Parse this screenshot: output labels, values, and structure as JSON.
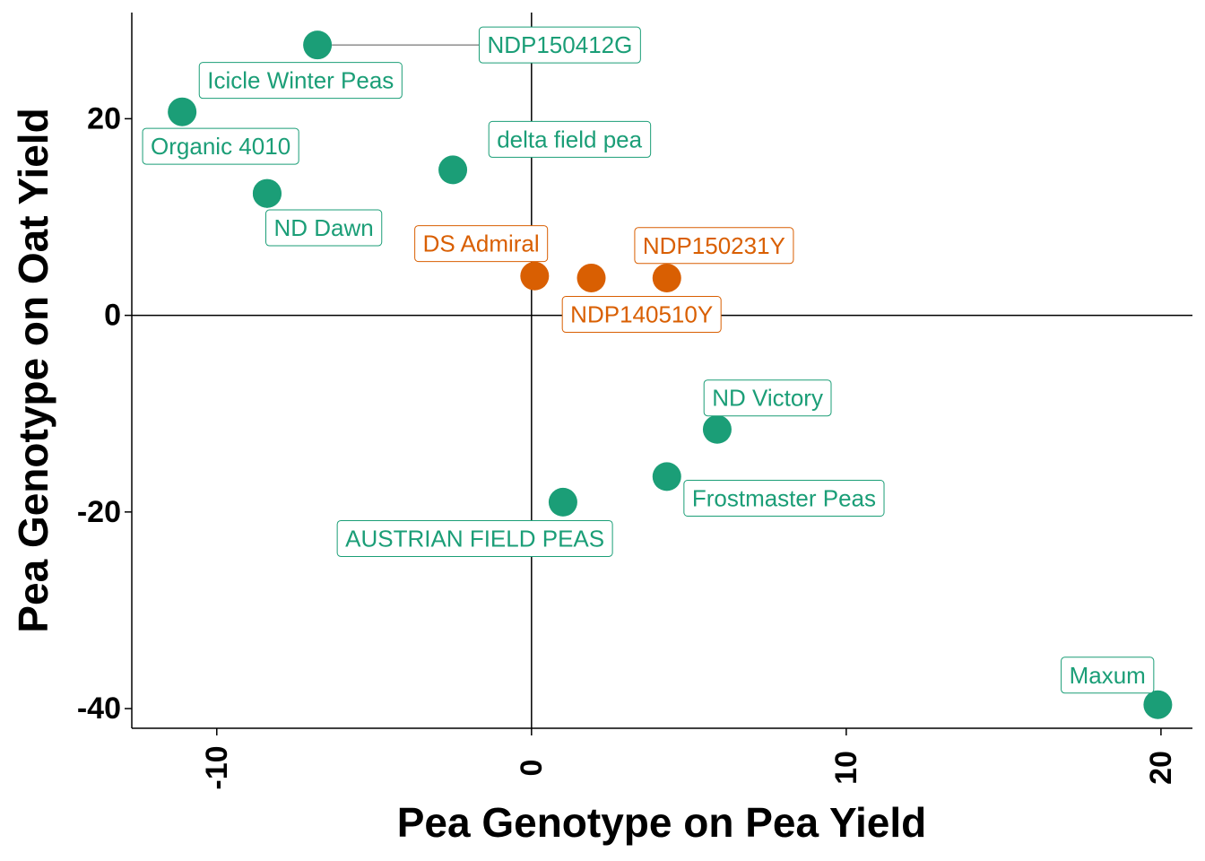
{
  "chart_data": {
    "type": "scatter",
    "title": "",
    "xlabel": "Pea Genotype on Pea Yield",
    "ylabel": "Pea Genotype on Oat Yield",
    "xlim": [
      -12.7,
      21.0
    ],
    "ylim": [
      -42.0,
      30.8
    ],
    "x_ticks": [
      {
        "value": -10,
        "label": "-10"
      },
      {
        "value": 0,
        "label": "0"
      },
      {
        "value": 10,
        "label": "10"
      },
      {
        "value": 20,
        "label": "20"
      }
    ],
    "y_ticks": [
      {
        "value": 20,
        "label": "20"
      },
      {
        "value": 0,
        "label": "0"
      },
      {
        "value": -20,
        "label": "-20"
      },
      {
        "value": -40,
        "label": "-40"
      }
    ],
    "reference_lines": {
      "x": 0,
      "y": 0
    },
    "grid": false,
    "legend": "none",
    "colors": {
      "green": "#1b9e77",
      "orange": "#d95f02"
    },
    "points": [
      {
        "label": "NDP150412G",
        "x": -6.8,
        "y": 27.5,
        "color": "green",
        "label_x": 0.9,
        "label_y": 27.5,
        "anchor": "middle",
        "connector": true
      },
      {
        "label": "Icicle Winter Peas",
        "x": -11.1,
        "y": 20.7,
        "color": "green",
        "label_x": -10.3,
        "label_y": 23.9,
        "anchor": "start",
        "connector": false
      },
      {
        "label": "Organic 4010",
        "x": -8.4,
        "y": 12.4,
        "color": "green",
        "label_x": -12.1,
        "label_y": 17.2,
        "anchor": "start",
        "connector": false
      },
      {
        "label": "ND Dawn",
        "x": -8.4,
        "y": 12.4,
        "color": "green",
        "label_x": -6.6,
        "label_y": 8.9,
        "anchor": "middle",
        "connector": false
      },
      {
        "label": "delta field pea",
        "x": -2.5,
        "y": 14.8,
        "color": "green",
        "label_x": -1.1,
        "label_y": 17.9,
        "anchor": "start",
        "connector": false
      },
      {
        "label": "DS Admiral",
        "x": 0.1,
        "y": 4.0,
        "color": "orange",
        "label_x": -1.6,
        "label_y": 7.3,
        "anchor": "middle",
        "connector": false
      },
      {
        "label": "NDP140510Y",
        "x": 1.9,
        "y": 3.8,
        "color": "orange",
        "label_x": 3.5,
        "label_y": 0.1,
        "anchor": "middle",
        "connector": false
      },
      {
        "label": "NDP150231Y",
        "x": 4.3,
        "y": 3.8,
        "color": "orange",
        "label_x": 5.8,
        "label_y": 7.1,
        "anchor": "middle",
        "connector": false
      },
      {
        "label": "ND Victory",
        "x": 5.9,
        "y": -11.6,
        "color": "green",
        "label_x": 7.5,
        "label_y": -8.4,
        "anchor": "middle",
        "connector": false
      },
      {
        "label": "Frostmaster Peas",
        "x": 4.3,
        "y": -16.4,
        "color": "green",
        "label_x": 5.1,
        "label_y": -18.6,
        "anchor": "start",
        "connector": false
      },
      {
        "label": "AUSTRIAN FIELD PEAS",
        "x": 1.0,
        "y": -19.0,
        "color": "green",
        "label_x": -1.8,
        "label_y": -22.7,
        "anchor": "middle",
        "connector": false
      },
      {
        "label": "Maxum",
        "x": 19.9,
        "y": -39.6,
        "color": "green",
        "label_x": 18.3,
        "label_y": -36.6,
        "anchor": "middle",
        "connector": false
      }
    ]
  }
}
